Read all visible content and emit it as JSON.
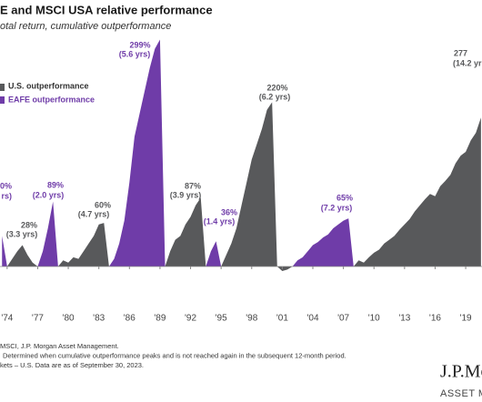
{
  "chart_data": {
    "type": "area",
    "title": "E and MSCI USA relative performance",
    "subtitle": "otal return, cumulative outperformance",
    "x": [
      1973.5,
      1974,
      1974.5,
      1975,
      1975.5,
      1976,
      1976.5,
      1977,
      1977.5,
      1978,
      1978.5,
      1979,
      1979.5,
      1980,
      1980.5,
      1981,
      1981.5,
      1982,
      1982.5,
      1983,
      1983.5,
      1984,
      1984.5,
      1985,
      1985.5,
      1986,
      1986.5,
      1987,
      1987.5,
      1988,
      1988.5,
      1989,
      1989.5,
      1990,
      1990.5,
      1991,
      1991.5,
      1992,
      1992.5,
      1993,
      1993.5,
      1994,
      1994.5,
      1995,
      1995.5,
      1996,
      1996.5,
      1997,
      1997.5,
      1998,
      1998.5,
      1999,
      1999.5,
      2000,
      2000.5,
      2001,
      2001.5,
      2002,
      2002.5,
      2003,
      2003.5,
      2004,
      2004.5,
      2005,
      2005.5,
      2006,
      2006.5,
      2007,
      2007.5,
      2008,
      2008.5,
      2009,
      2009.5,
      2010,
      2010.5,
      2011,
      2011.5,
      2012,
      2012.5,
      2013,
      2013.5,
      2014,
      2014.5,
      2015,
      2015.5,
      2016,
      2016.5,
      2017,
      2017.5,
      2018,
      2018.5,
      2019,
      2019.5,
      2020,
      2020.5
    ],
    "series": [
      {
        "name": "U.S. outperformance",
        "color": "#58595b",
        "values": [
          null,
          0,
          10,
          20,
          28,
          15,
          5,
          0,
          null,
          null,
          null,
          0,
          8,
          5,
          12,
          10,
          20,
          30,
          40,
          55,
          57,
          0,
          null,
          null,
          null,
          null,
          null,
          null,
          null,
          null,
          null,
          null,
          0,
          20,
          35,
          40,
          55,
          65,
          80,
          90,
          0,
          null,
          null,
          0,
          15,
          30,
          50,
          80,
          110,
          140,
          160,
          180,
          205,
          215,
          0,
          -6,
          -4,
          0,
          null,
          null,
          null,
          null,
          null,
          null,
          null,
          null,
          null,
          null,
          null,
          0,
          8,
          5,
          12,
          18,
          22,
          30,
          35,
          40,
          48,
          55,
          62,
          72,
          80,
          88,
          95,
          92,
          105,
          112,
          120,
          135,
          145,
          150,
          165,
          175,
          195
        ]
      },
      {
        "name": "EAFE outperformance",
        "color": "#6f3ca8",
        "values": [
          40,
          0,
          null,
          null,
          null,
          null,
          null,
          0,
          20,
          50,
          85,
          0,
          null,
          null,
          null,
          null,
          null,
          null,
          null,
          null,
          null,
          0,
          10,
          30,
          60,
          110,
          170,
          200,
          230,
          260,
          285,
          297,
          0,
          null,
          null,
          null,
          null,
          null,
          null,
          null,
          0,
          20,
          33,
          0,
          null,
          null,
          null,
          null,
          null,
          null,
          null,
          null,
          null,
          null,
          null,
          null,
          null,
          0,
          8,
          12,
          20,
          28,
          32,
          38,
          42,
          50,
          55,
          60,
          63,
          0,
          null,
          null,
          null,
          null,
          null,
          null,
          null,
          null,
          null,
          null,
          null,
          null,
          null,
          null,
          null,
          null,
          null,
          null,
          null,
          null,
          null,
          null,
          null,
          null,
          null
        ]
      }
    ],
    "xlim": [
      1973.3,
      2020.6
    ],
    "xticks": [
      {
        "value": 1974,
        "label": "'74"
      },
      {
        "value": 1977,
        "label": "'77"
      },
      {
        "value": 1980,
        "label": "'80"
      },
      {
        "value": 1983,
        "label": "'83"
      },
      {
        "value": 1986,
        "label": "'86"
      },
      {
        "value": 1989,
        "label": "'89"
      },
      {
        "value": 1992,
        "label": "'92"
      },
      {
        "value": 1995,
        "label": "'95"
      },
      {
        "value": 1998,
        "label": "'98"
      },
      {
        "value": 2001,
        "label": "'01"
      },
      {
        "value": 2004,
        "label": "'04"
      },
      {
        "value": 2007,
        "label": "'07"
      },
      {
        "value": 2010,
        "label": "'10"
      },
      {
        "value": 2013,
        "label": "'13"
      },
      {
        "value": 2016,
        "label": "'16"
      },
      {
        "value": 2019,
        "label": "'19"
      }
    ],
    "annotations": [
      {
        "text": "0%",
        "period": "rs)",
        "color": "#6f3ca8"
      },
      {
        "text": "28%",
        "period": "(3.3 yrs)",
        "color": "#58595b"
      },
      {
        "text": "89%",
        "period": "(2.0 yrs)",
        "color": "#6f3ca8"
      },
      {
        "text": "60%",
        "period": "(4.7 yrs)",
        "color": "#58595b"
      },
      {
        "text": "299%",
        "period": "(5.6 yrs)",
        "color": "#6f3ca8"
      },
      {
        "text": "87%",
        "period": "(3.9 yrs)",
        "color": "#58595b"
      },
      {
        "text": "36%",
        "period": "(1.4 yrs)",
        "color": "#6f3ca8"
      },
      {
        "text": "220%",
        "period": "(6.2 yrs)",
        "color": "#58595b"
      },
      {
        "text": "65%",
        "period": "(7.2 yrs)",
        "color": "#6f3ca8"
      },
      {
        "text": "277",
        "period": "(14.2 yr",
        "color": "#58595b"
      }
    ],
    "footnotes": [
      "MSCI, J.P. Morgan Asset Management.",
      "Determined when cumulative outperformance peaks and is not reached again in the subsequent 12-month period.",
      "kets – U.S. Data are as of September 30, 2023."
    ],
    "logo": {
      "brand": "J.P.Mo",
      "division": "ASSET MA"
    }
  }
}
